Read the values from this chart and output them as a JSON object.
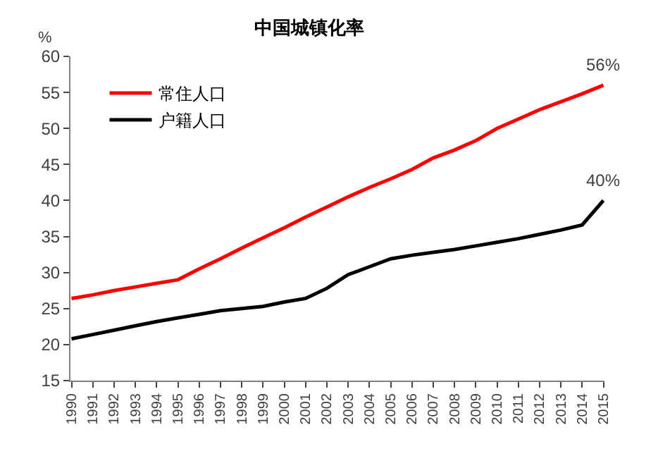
{
  "chart_data": {
    "type": "line",
    "title": "中国城镇化率",
    "ylabel": "%",
    "categories": [
      "1990",
      "1991",
      "1992",
      "1993",
      "1994",
      "1995",
      "1996",
      "1997",
      "1998",
      "1999",
      "2000",
      "2001",
      "2002",
      "2003",
      "2004",
      "2005",
      "2006",
      "2007",
      "2008",
      "2009",
      "2010",
      "2011",
      "2012",
      "2013",
      "2014",
      "2015"
    ],
    "series": [
      {
        "name": "常住人口",
        "color": "#ff0000",
        "values": [
          26.4,
          26.9,
          27.5,
          28.0,
          28.5,
          29.0,
          30.5,
          31.9,
          33.4,
          34.8,
          36.2,
          37.7,
          39.1,
          40.5,
          41.8,
          43.0,
          44.3,
          45.9,
          47.0,
          48.3,
          50.0,
          51.3,
          52.6,
          53.7,
          54.8,
          56.0
        ]
      },
      {
        "name": "户籍人口",
        "color": "#000000",
        "values": [
          20.8,
          21.4,
          22.0,
          22.6,
          23.2,
          23.7,
          24.2,
          24.7,
          25.0,
          25.3,
          25.9,
          26.4,
          27.8,
          29.7,
          30.8,
          31.9,
          32.4,
          32.8,
          33.2,
          33.7,
          34.2,
          34.7,
          35.3,
          35.9,
          36.6,
          40.0
        ]
      }
    ],
    "ylim": [
      15,
      60
    ],
    "yticks": [
      15,
      20,
      25,
      30,
      35,
      40,
      45,
      50,
      55,
      60
    ],
    "grid": false,
    "legend": "top left",
    "marker": "none",
    "line_style": "solid",
    "annotations": [
      {
        "text": "56%",
        "x": "2015",
        "y": 56.0
      },
      {
        "text": "40%",
        "x": "2015",
        "y": 40.0
      }
    ]
  }
}
